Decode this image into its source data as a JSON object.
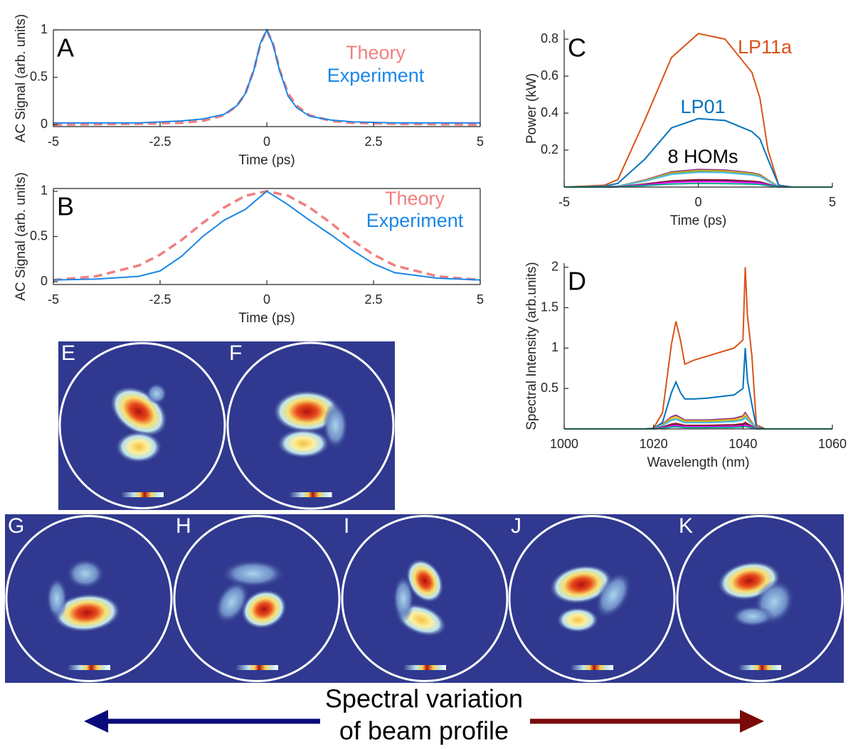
{
  "chart_data": [
    {
      "type": "line",
      "label": "A",
      "xlabel": "Time (ps)",
      "ylabel": "AC Signal (arb. units)",
      "x": [
        -5,
        -3,
        -2,
        -1.5,
        -1,
        -0.7,
        -0.5,
        -0.3,
        -0.15,
        0,
        0.15,
        0.3,
        0.5,
        0.7,
        1,
        1.5,
        2,
        3,
        5
      ],
      "series": [
        {
          "name": "Theory",
          "color": "#f08080",
          "dashed": true,
          "values": [
            0,
            0.01,
            0.02,
            0.04,
            0.1,
            0.2,
            0.33,
            0.58,
            0.85,
            1,
            0.85,
            0.58,
            0.33,
            0.2,
            0.1,
            0.04,
            0.02,
            0.01,
            0
          ]
        },
        {
          "name": "Experiment",
          "color": "#1a86e8",
          "dashed": false,
          "values": [
            0.02,
            0.02,
            0.04,
            0.06,
            0.11,
            0.2,
            0.33,
            0.58,
            0.86,
            1,
            0.84,
            0.57,
            0.3,
            0.18,
            0.09,
            0.05,
            0.03,
            0.02,
            0.02
          ]
        }
      ],
      "xlim": [
        -5,
        5
      ],
      "ylim": [
        -0.02,
        1
      ],
      "xticks": [
        -5,
        -2.5,
        0,
        2.5,
        5
      ],
      "yticks": [
        0,
        0.5,
        1
      ]
    },
    {
      "type": "line",
      "label": "B",
      "xlabel": "Time (ps)",
      "ylabel": "AC Signal (arb. units)",
      "x": [
        -5,
        -4,
        -3,
        -2.5,
        -2,
        -1.5,
        -1,
        -0.5,
        0,
        0.5,
        1,
        1.5,
        2,
        2.5,
        3,
        4,
        5
      ],
      "series": [
        {
          "name": "Theory",
          "color": "#f08080",
          "dashed": true,
          "values": [
            0.02,
            0.06,
            0.18,
            0.3,
            0.46,
            0.65,
            0.82,
            0.95,
            1,
            0.95,
            0.82,
            0.65,
            0.46,
            0.3,
            0.18,
            0.06,
            0.02
          ]
        },
        {
          "name": "Experiment",
          "color": "#1a86e8",
          "dashed": false,
          "values": [
            0.02,
            0.03,
            0.06,
            0.12,
            0.28,
            0.5,
            0.68,
            0.8,
            1,
            0.85,
            0.68,
            0.52,
            0.35,
            0.2,
            0.1,
            0.04,
            0.02
          ]
        }
      ],
      "xlim": [
        -5,
        5
      ],
      "ylim": [
        -0.03,
        1.03
      ],
      "xticks": [
        -5,
        -2.5,
        0,
        2.5,
        5
      ],
      "yticks": [
        0,
        0.5,
        1
      ]
    },
    {
      "type": "line",
      "label": "C",
      "xlabel": "Time (ps)",
      "ylabel": "Power (kW)",
      "annotations": [
        "8 HOMs"
      ],
      "x": [
        -5,
        -3.5,
        -3,
        -2,
        -1,
        0,
        1,
        2,
        2.3,
        2.6,
        3,
        3.5,
        5
      ],
      "series": [
        {
          "name": "LP11a",
          "color": "#d95319",
          "values": [
            0,
            0.01,
            0.04,
            0.36,
            0.7,
            0.83,
            0.8,
            0.62,
            0.48,
            0.2,
            0.01,
            0,
            0
          ]
        },
        {
          "name": "LP01",
          "color": "#0072bd",
          "values": [
            0,
            0.005,
            0.02,
            0.15,
            0.32,
            0.37,
            0.36,
            0.3,
            0.26,
            0.15,
            0.01,
            0,
            0
          ]
        },
        {
          "color": "#7e2f8e",
          "values": [
            0,
            0.001,
            0.005,
            0.038,
            0.082,
            0.095,
            0.092,
            0.077,
            0.067,
            0.038,
            0.003,
            0,
            0
          ]
        },
        {
          "color": "#edb120",
          "values": [
            0,
            0.001,
            0.005,
            0.036,
            0.077,
            0.09,
            0.087,
            0.073,
            0.063,
            0.036,
            0.003,
            0,
            0
          ]
        },
        {
          "color": "#77ac30",
          "values": [
            0,
            0.001,
            0.004,
            0.034,
            0.073,
            0.085,
            0.082,
            0.069,
            0.06,
            0.034,
            0.003,
            0,
            0
          ]
        },
        {
          "color": "#4dbeee",
          "values": [
            0,
            0.001,
            0.004,
            0.032,
            0.069,
            0.08,
            0.078,
            0.065,
            0.056,
            0.032,
            0.002,
            0,
            0
          ]
        },
        {
          "color": "#a2142f",
          "values": [
            0,
            0,
            0.002,
            0.016,
            0.034,
            0.04,
            0.039,
            0.032,
            0.028,
            0.016,
            0.001,
            0,
            0
          ]
        },
        {
          "color": "#333333",
          "values": [
            0,
            0,
            0.002,
            0.014,
            0.03,
            0.035,
            0.034,
            0.028,
            0.025,
            0.014,
            0.001,
            0,
            0
          ]
        },
        {
          "color": "#ff00ff",
          "values": [
            0,
            0,
            0.002,
            0.012,
            0.026,
            0.03,
            0.029,
            0.024,
            0.021,
            0.012,
            0.001,
            0,
            0
          ]
        },
        {
          "color": "#00aa88",
          "values": [
            0,
            0,
            0.001,
            0.008,
            0.017,
            0.02,
            0.019,
            0.016,
            0.014,
            0.008,
            0.001,
            0,
            0
          ]
        }
      ],
      "xlim": [
        -5,
        5
      ],
      "ylim": [
        0,
        0.85
      ],
      "xticks": [
        -5,
        0,
        5
      ],
      "yticks": [
        0.2,
        0.4,
        0.6,
        0.8
      ]
    },
    {
      "type": "line",
      "label": "D",
      "xlabel": "Wavelength (nm)",
      "ylabel": "Spectral Intensity (arb.units)",
      "x": [
        1000,
        1018,
        1020,
        1022,
        1024,
        1025,
        1026,
        1027,
        1029,
        1032,
        1035,
        1038,
        1040,
        1040.5,
        1041,
        1042,
        1043,
        1045,
        1060
      ],
      "series": [
        {
          "color": "#d95319",
          "values": [
            0,
            0,
            0.01,
            0.2,
            1.05,
            1.33,
            1.1,
            0.8,
            0.85,
            0.9,
            0.95,
            1.0,
            1.1,
            2.0,
            1.4,
            0.9,
            0.05,
            0,
            0
          ]
        },
        {
          "color": "#0072bd",
          "values": [
            0,
            0,
            0.005,
            0.08,
            0.45,
            0.58,
            0.45,
            0.37,
            0.37,
            0.38,
            0.4,
            0.42,
            0.5,
            1.0,
            0.6,
            0.3,
            0.02,
            0,
            0
          ]
        },
        {
          "color": "#7e2f8e",
          "values": [
            0,
            0,
            0,
            0.06,
            0.15,
            0.17,
            0.14,
            0.11,
            0.11,
            0.11,
            0.12,
            0.13,
            0.16,
            0.2,
            0.16,
            0.08,
            0.01,
            0,
            0
          ]
        },
        {
          "color": "#edb120",
          "values": [
            0,
            0,
            0,
            0.054,
            0.135,
            0.153,
            0.126,
            0.099,
            0.099,
            0.099,
            0.108,
            0.117,
            0.144,
            0.18,
            0.144,
            0.072,
            0.009,
            0,
            0
          ]
        },
        {
          "color": "#77ac30",
          "values": [
            0,
            0,
            0,
            0.045,
            0.113,
            0.128,
            0.105,
            0.083,
            0.083,
            0.083,
            0.09,
            0.098,
            0.12,
            0.15,
            0.12,
            0.06,
            0.008,
            0,
            0
          ]
        },
        {
          "color": "#4dbeee",
          "values": [
            0,
            0,
            0,
            0.042,
            0.105,
            0.119,
            0.098,
            0.077,
            0.077,
            0.077,
            0.084,
            0.091,
            0.112,
            0.14,
            0.112,
            0.056,
            0.007,
            0,
            0
          ]
        },
        {
          "color": "#a2142f",
          "values": [
            0,
            0,
            0,
            0.024,
            0.06,
            0.068,
            0.056,
            0.044,
            0.044,
            0.044,
            0.048,
            0.052,
            0.064,
            0.08,
            0.064,
            0.032,
            0.004,
            0,
            0
          ]
        },
        {
          "color": "#333333",
          "values": [
            0,
            0,
            0,
            0.018,
            0.045,
            0.051,
            0.042,
            0.033,
            0.033,
            0.033,
            0.036,
            0.039,
            0.048,
            0.06,
            0.048,
            0.024,
            0.003,
            0,
            0
          ]
        },
        {
          "color": "#ff00ff",
          "values": [
            0,
            0,
            0,
            0.015,
            0.038,
            0.043,
            0.035,
            0.028,
            0.028,
            0.028,
            0.03,
            0.033,
            0.04,
            0.05,
            0.04,
            0.02,
            0.003,
            0,
            0
          ]
        },
        {
          "color": "#00aa88",
          "values": [
            0,
            0,
            0,
            0.009,
            0.023,
            0.026,
            0.021,
            0.017,
            0.017,
            0.017,
            0.018,
            0.02,
            0.024,
            0.03,
            0.024,
            0.012,
            0.002,
            0,
            0
          ]
        }
      ],
      "xlim": [
        1000,
        1060
      ],
      "ylim": [
        0,
        2.05
      ],
      "xticks": [
        1000,
        1020,
        1040,
        1060
      ],
      "yticks": [
        0.5,
        1,
        1.5,
        2
      ]
    }
  ],
  "panels": [
    {
      "label": "E"
    },
    {
      "label": "F"
    },
    {
      "label": "G"
    },
    {
      "label": "H"
    },
    {
      "label": "I"
    },
    {
      "label": "J"
    },
    {
      "label": "K"
    }
  ],
  "caption": [
    "Spectral variation",
    "of beam profile"
  ]
}
